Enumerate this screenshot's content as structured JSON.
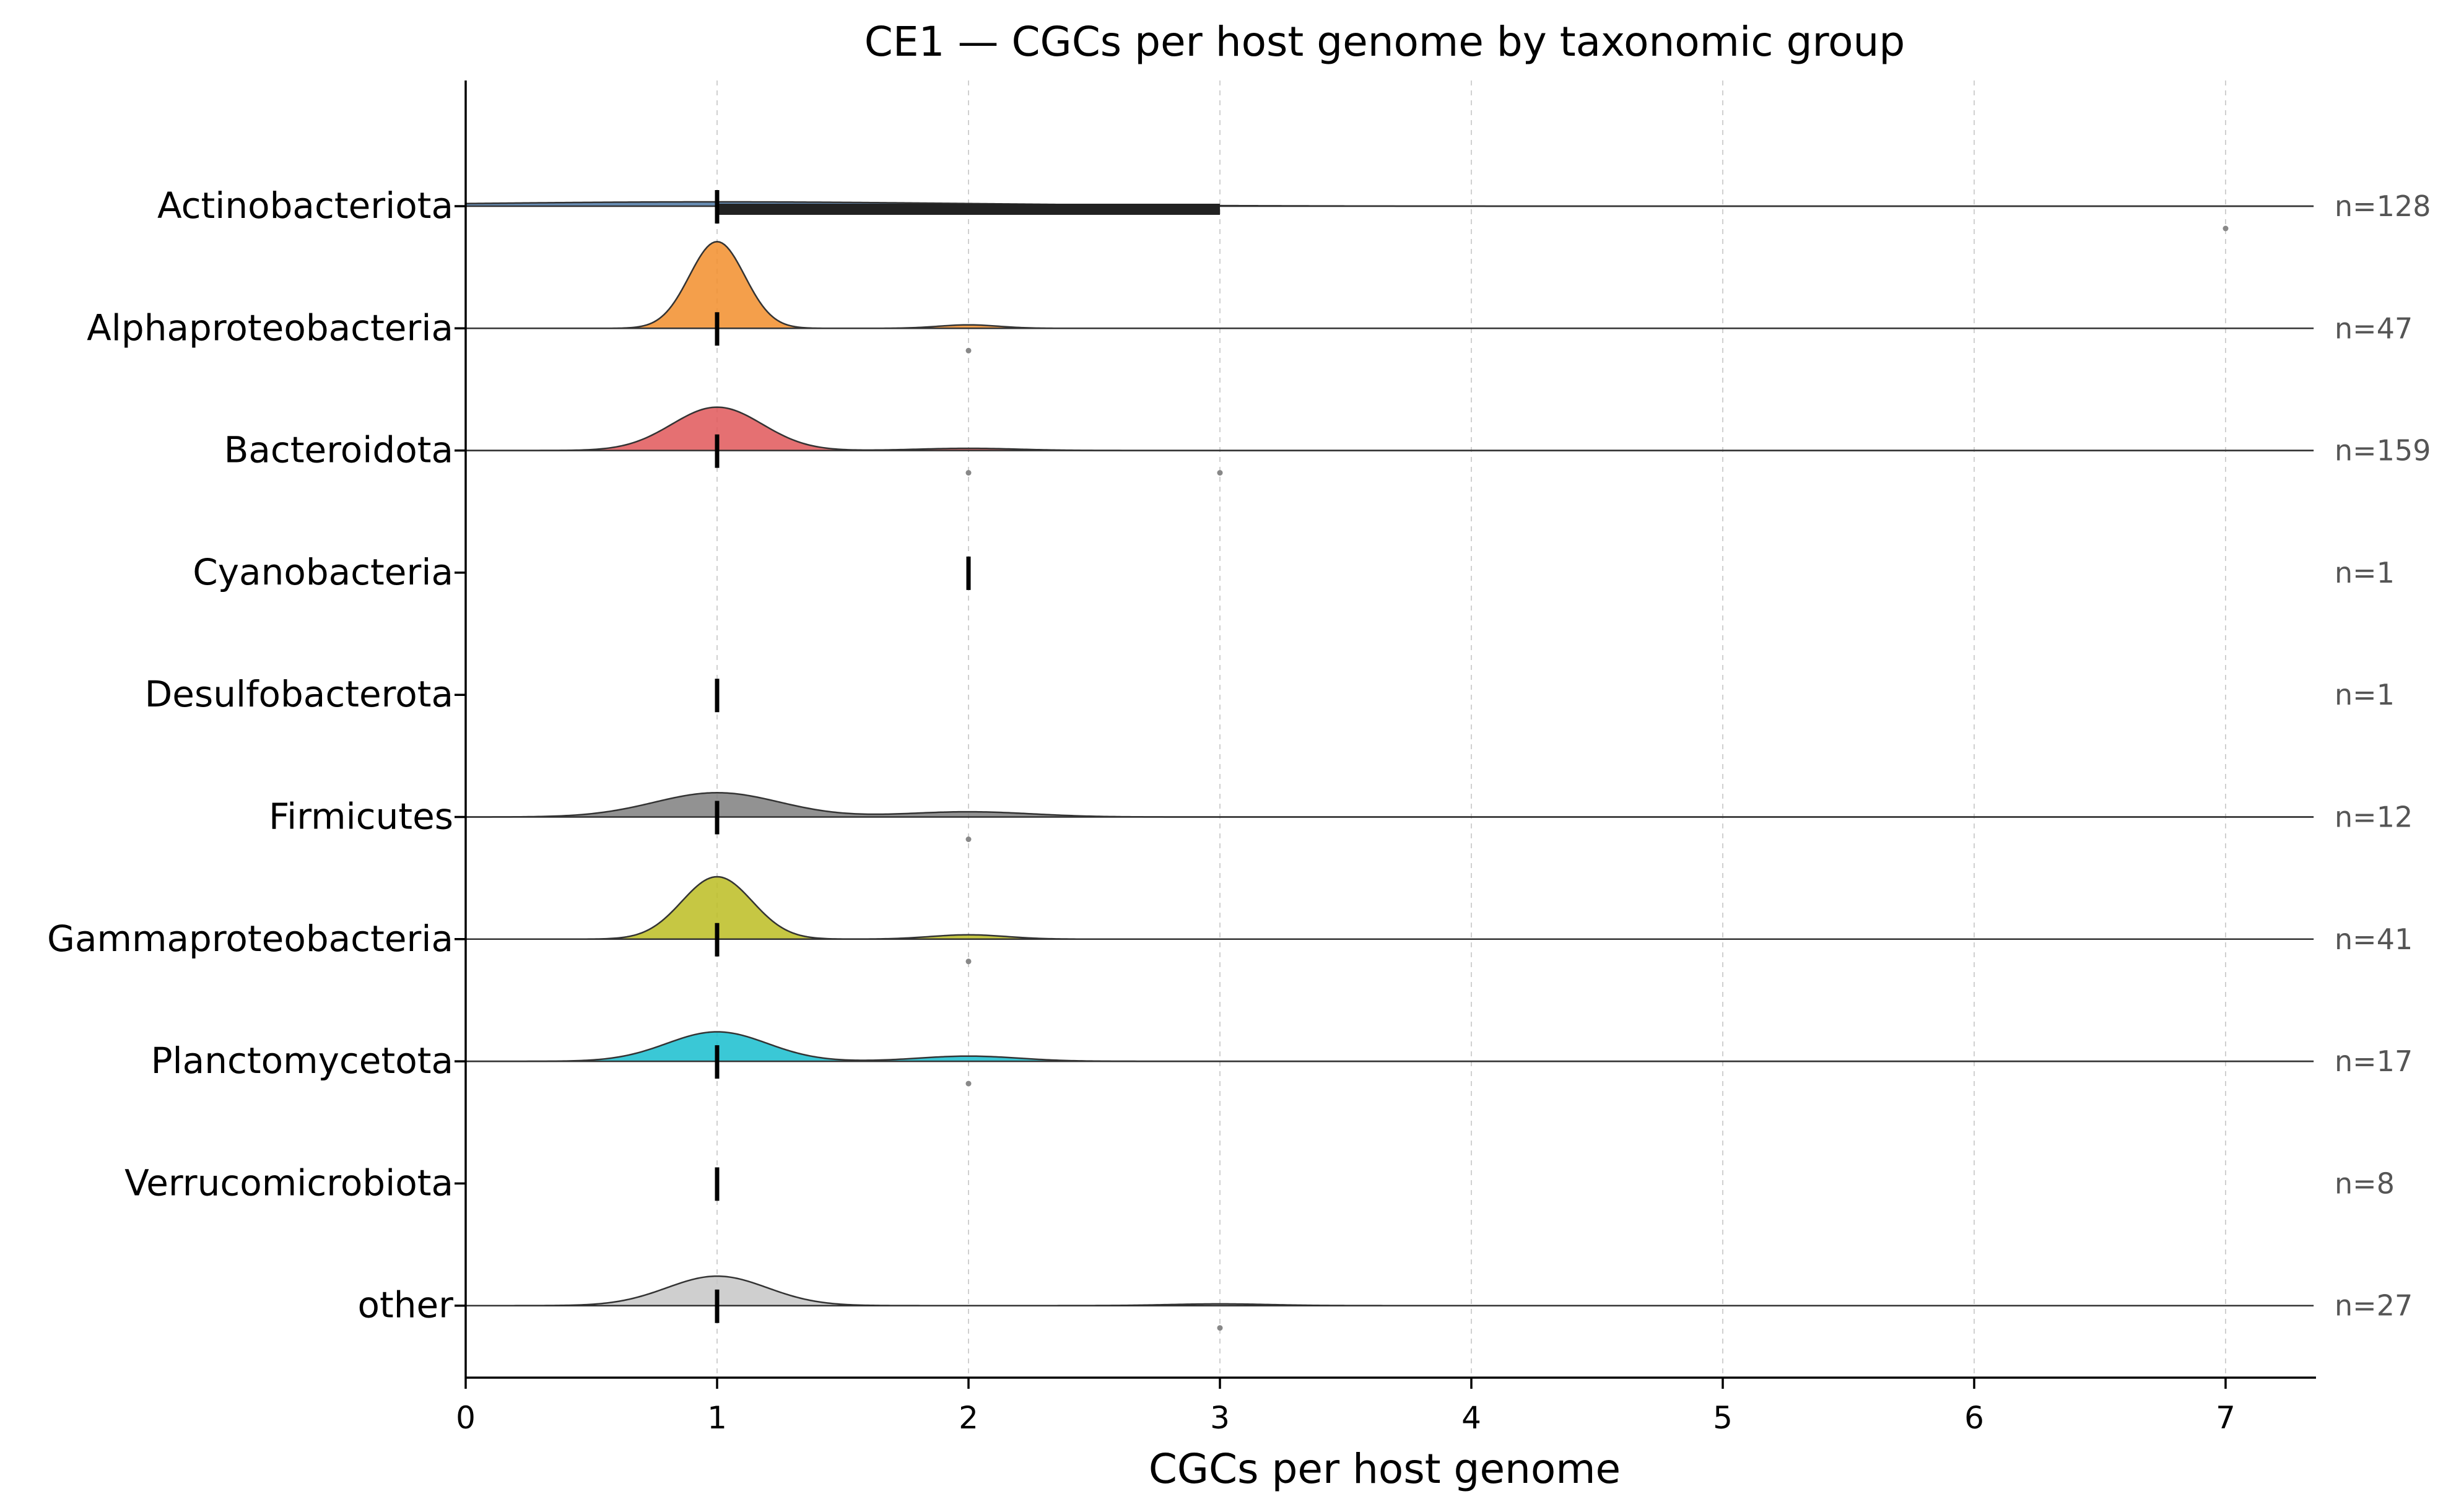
{
  "chart_data": {
    "type": "ridgeline",
    "title": "CE1 — CGCs per host genome by taxonomic group",
    "xlabel": "CGCs per host genome",
    "ylabel": "",
    "xlim": [
      0,
      7.35
    ],
    "xticks": [
      0,
      1,
      2,
      3,
      4,
      5,
      6,
      7
    ],
    "grid": "vertical dashed at x ticks",
    "groups": [
      {
        "name": "Actinobacteriota",
        "n_label": "n=128",
        "color": "#4e79a7",
        "median": 1,
        "iqr": [
          1,
          3
        ],
        "mode": 1,
        "peak": 0.05,
        "bw": 1.0,
        "secondary": [],
        "outliers": [
          7
        ]
      },
      {
        "name": "Alphaproteobacteria",
        "n_label": "n=47",
        "color": "#f28e2b",
        "median": 1,
        "iqr": [
          1,
          1
        ],
        "mode": 1,
        "peak": 1.0,
        "bw": 0.11,
        "secondary": [
          {
            "x": 2,
            "h": 0.04,
            "bw": 0.12
          }
        ],
        "outliers": [
          2
        ]
      },
      {
        "name": "Bacteroidota",
        "n_label": "n=159",
        "color": "#e15759",
        "median": 1,
        "iqr": [
          1,
          1
        ],
        "mode": 1,
        "peak": 0.5,
        "bw": 0.18,
        "secondary": [
          {
            "x": 2,
            "h": 0.025,
            "bw": 0.2
          }
        ],
        "outliers": [
          2,
          3
        ]
      },
      {
        "name": "Cyanobacteria",
        "n_label": "n=1",
        "color": "#76b7b2",
        "median": 2,
        "iqr": [
          2,
          2
        ],
        "mode": 2,
        "peak": 0,
        "bw": 0.2,
        "secondary": [],
        "outliers": []
      },
      {
        "name": "Desulfobacterota",
        "n_label": "n=1",
        "color": "#59a14f",
        "median": 1,
        "iqr": [
          1,
          1
        ],
        "mode": 1,
        "peak": 0,
        "bw": 0.2,
        "secondary": [],
        "outliers": []
      },
      {
        "name": "Firmicutes",
        "n_label": "n=12",
        "color": "#7f7f7f",
        "median": 1,
        "iqr": [
          1,
          1
        ],
        "mode": 1,
        "peak": 0.28,
        "bw": 0.25,
        "secondary": [
          {
            "x": 2,
            "h": 0.06,
            "bw": 0.25
          }
        ],
        "outliers": [
          2
        ]
      },
      {
        "name": "Gammaproteobacteria",
        "n_label": "n=41",
        "color": "#bcbd22",
        "median": 1,
        "iqr": [
          1,
          1
        ],
        "mode": 1,
        "peak": 0.72,
        "bw": 0.14,
        "secondary": [
          {
            "x": 2,
            "h": 0.05,
            "bw": 0.15
          }
        ],
        "outliers": [
          2
        ]
      },
      {
        "name": "Planctomycetota",
        "n_label": "n=17",
        "color": "#17becf",
        "median": 1,
        "iqr": [
          1,
          1
        ],
        "mode": 1,
        "peak": 0.34,
        "bw": 0.2,
        "secondary": [
          {
            "x": 2,
            "h": 0.06,
            "bw": 0.2
          }
        ],
        "outliers": [
          2
        ]
      },
      {
        "name": "Verrucomicrobiota",
        "n_label": "n=8",
        "color": "#b07aa1",
        "median": 1,
        "iqr": [
          1,
          1
        ],
        "mode": 1,
        "peak": 0,
        "bw": 0.2,
        "secondary": [],
        "outliers": []
      },
      {
        "name": "other",
        "n_label": "n=27",
        "color": "#c7c7c7",
        "median": 1,
        "iqr": [
          1,
          1
        ],
        "mode": 1,
        "peak": 0.34,
        "bw": 0.2,
        "secondary": [
          {
            "x": 3,
            "h": 0.02,
            "bw": 0.2
          }
        ],
        "outliers": [
          3
        ]
      }
    ]
  }
}
